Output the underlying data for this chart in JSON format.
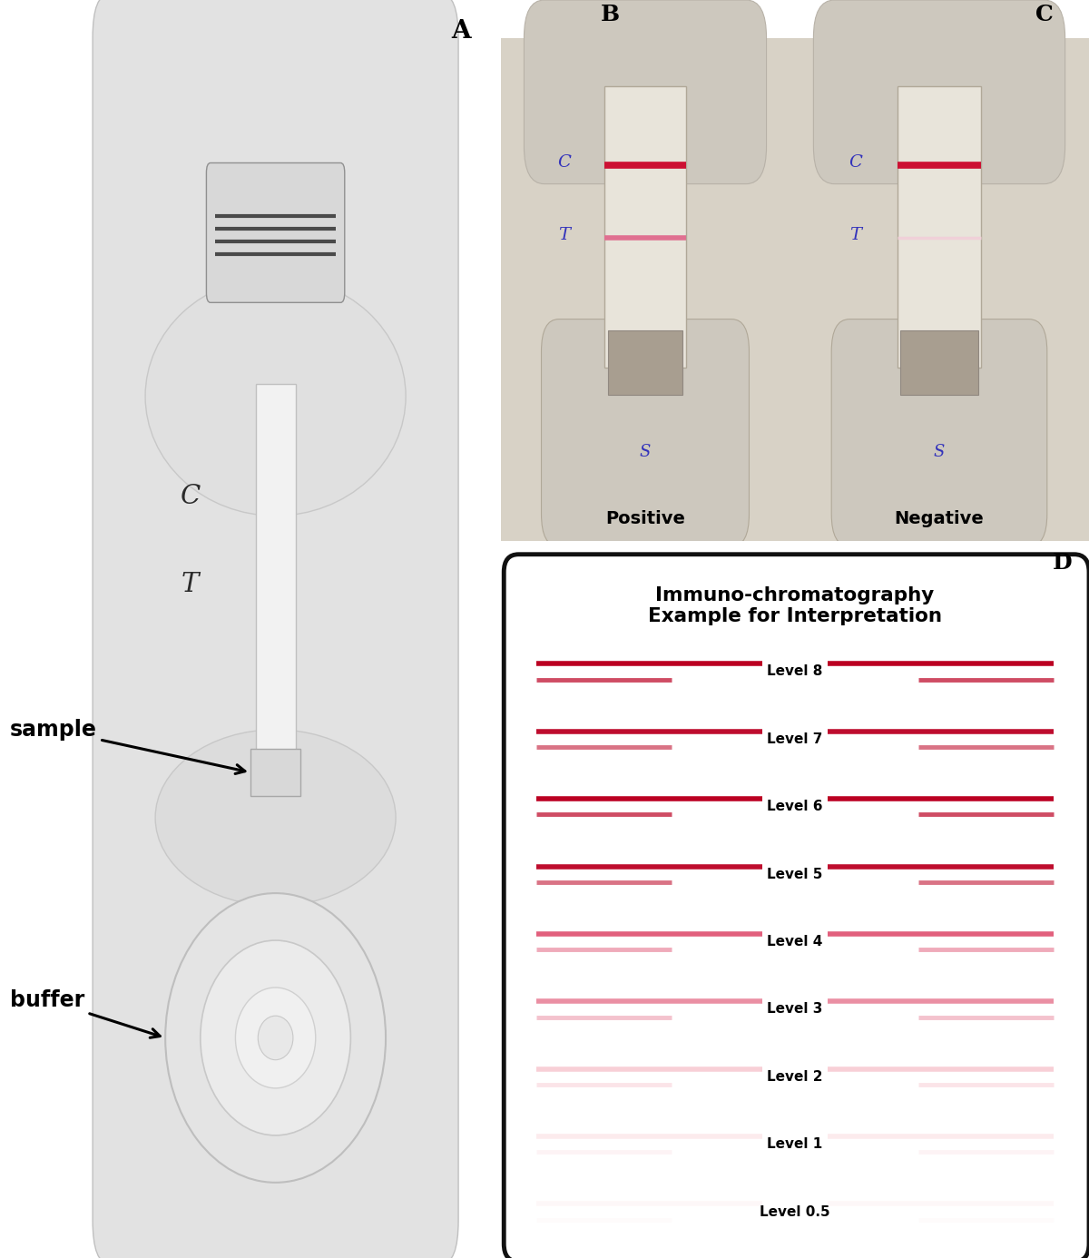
{
  "panel_labels": [
    "A",
    "B",
    "C",
    "D"
  ],
  "bg": "#ffffff",
  "title_d": "Immuno-chromatography\nExample for Interpretation",
  "levels": [
    "Level 8",
    "Level 7",
    "Level 6",
    "Level 5",
    "Level 4",
    "Level 3",
    "Level 2",
    "Level 1",
    "Level 0.5"
  ],
  "level_colors": [
    "#bb0022",
    "#bb0022",
    "#bb0022",
    "#bb0022",
    "#dd4466",
    "#dd4466",
    "#ee8899",
    "#f5b0bb",
    "#f8ccd4"
  ],
  "level_alpha_c": [
    1.0,
    0.95,
    1.0,
    0.95,
    0.85,
    0.6,
    0.4,
    0.25,
    0.15
  ],
  "level_alpha_t": [
    0.7,
    0.55,
    0.7,
    0.55,
    0.45,
    0.32,
    0.22,
    0.14,
    0.08
  ],
  "device_color": "#e2e2e2",
  "device_edge": "#c0c0c0",
  "device_inner": "#ececec",
  "strip_color": "#f5f5f5",
  "strip_edge": "#c8c8c8",
  "photo_bg": "#ddd8ce",
  "photo_strip_bg": "#e8e2d8",
  "c_line_pos": "#cc1133",
  "t_line_pos": "#e06080",
  "c_line_neg": "#cc1133",
  "t_line_neg": "#f0c8d0",
  "label_color_ct": "#3333bb"
}
